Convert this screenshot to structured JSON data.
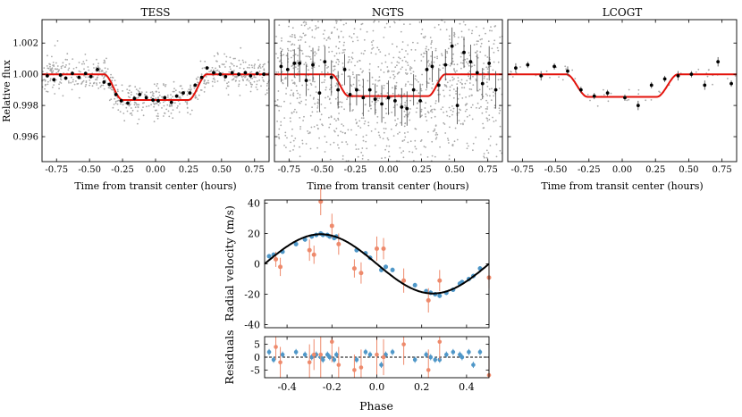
{
  "chart_data": [
    {
      "id": "tess",
      "type": "scatter",
      "title": "TESS",
      "xlabel": "Time from transit center (hours)",
      "ylabel": "Relative flux",
      "xlim": [
        -0.86,
        0.86
      ],
      "ylim": [
        0.9944,
        1.0035
      ],
      "xticks": [
        "-0.75",
        "-0.50",
        "-0.25",
        "0.00",
        "0.25",
        "0.50",
        "0.75"
      ],
      "yticks": [
        "0.996",
        "0.998",
        "1.000",
        "1.002"
      ],
      "model": {
        "depth": 0.00165,
        "ingress_start": 0.39,
        "flat_start": 0.25
      },
      "binned": {
        "x": [
          -0.82,
          -0.77,
          -0.72,
          -0.68,
          -0.63,
          -0.58,
          -0.53,
          -0.49,
          -0.44,
          -0.39,
          -0.35,
          -0.3,
          -0.26,
          -0.21,
          -0.16,
          -0.12,
          -0.07,
          -0.02,
          0.02,
          0.07,
          0.12,
          0.16,
          0.21,
          0.26,
          0.3,
          0.35,
          0.39,
          0.44,
          0.49,
          0.53,
          0.58,
          0.63,
          0.68,
          0.72,
          0.77,
          0.82
        ],
        "y": [
          0.9999,
          0.99965,
          0.99995,
          0.99975,
          1.00005,
          0.9998,
          1.00005,
          0.99985,
          1.0003,
          0.9995,
          0.99935,
          0.9987,
          0.9983,
          0.99815,
          0.99845,
          0.9987,
          0.9985,
          0.99835,
          0.9983,
          0.9985,
          0.9982,
          0.9986,
          0.9988,
          0.9988,
          0.9993,
          0.9998,
          1.0004,
          1.0001,
          1.0,
          0.99985,
          1.0001,
          1.0,
          1.0001,
          0.9999,
          1.00005,
          1.0
        ]
      },
      "scatter_sigma": 0.0006,
      "scatter_count": 650
    },
    {
      "id": "ngts",
      "type": "scatter",
      "title": "NGTS",
      "xlabel": "Time from transit center (hours)",
      "ylabel": "",
      "xlim": [
        -0.86,
        0.86
      ],
      "ylim": [
        0.9944,
        1.0035
      ],
      "xticks": [
        "-0.75",
        "-0.50",
        "-0.25",
        "0.00",
        "0.25",
        "0.50",
        "0.75"
      ],
      "yticks": [],
      "model": {
        "depth": 0.0014,
        "ingress_start": 0.43,
        "flat_start": 0.3
      },
      "binned": {
        "x": [
          -0.81,
          -0.76,
          -0.71,
          -0.67,
          -0.62,
          -0.57,
          -0.52,
          -0.48,
          -0.43,
          -0.38,
          -0.33,
          -0.29,
          -0.24,
          -0.19,
          -0.14,
          -0.1,
          -0.05,
          0.0,
          0.05,
          0.1,
          0.14,
          0.19,
          0.24,
          0.29,
          0.33,
          0.38,
          0.43,
          0.48,
          0.52,
          0.57,
          0.62,
          0.67,
          0.71,
          0.76,
          0.81
        ],
        "y": [
          1.0005,
          1.0003,
          1.0007,
          1.0007,
          0.9996,
          1.0006,
          0.9988,
          1.0008,
          0.9998,
          0.999,
          1.0003,
          0.9987,
          0.999,
          0.9985,
          0.999,
          0.9984,
          0.9981,
          0.9985,
          0.9983,
          0.9979,
          0.9978,
          0.999,
          0.9983,
          1.0003,
          1.0005,
          0.9993,
          1.0006,
          1.0018,
          0.998,
          1.0014,
          1.0008,
          1.0001,
          0.9994,
          1.0007,
          0.999
        ],
        "err": [
          0.001,
          0.0011,
          0.0009,
          0.0012,
          0.001,
          0.0011,
          0.0012,
          0.001,
          0.0011,
          0.0012,
          0.001,
          0.0011,
          0.001,
          0.0012,
          0.0011,
          0.001,
          0.0012,
          0.0011,
          0.001,
          0.0012,
          0.0011,
          0.001,
          0.0011,
          0.0012,
          0.001,
          0.0011,
          0.001,
          0.0012,
          0.0012,
          0.001,
          0.0011,
          0.0012,
          0.001,
          0.0011,
          0.0012
        ]
      },
      "scatter_sigma": 0.0035,
      "scatter_count": 1400
    },
    {
      "id": "lcogt",
      "type": "scatter",
      "title": "LCOGT",
      "xlabel": "Time from transit center (hours)",
      "ylabel": "",
      "xlim": [
        -0.86,
        0.86
      ],
      "ylim": [
        0.9944,
        1.0035
      ],
      "xticks": [
        "-0.75",
        "-0.50",
        "-0.25",
        "0.00",
        "0.25",
        "0.50",
        "0.75"
      ],
      "yticks": [],
      "model": {
        "depth": 0.00145,
        "ingress_start": 0.42,
        "flat_start": 0.26
      },
      "binned": {
        "x": [
          -0.8,
          -0.71,
          -0.61,
          -0.51,
          -0.41,
          -0.31,
          -0.21,
          -0.11,
          0.02,
          0.12,
          0.22,
          0.32,
          0.42,
          0.52,
          0.62,
          0.72,
          0.82
        ],
        "y": [
          1.0004,
          1.0006,
          0.9999,
          1.0005,
          1.0002,
          0.999,
          0.9986,
          0.9988,
          0.9985,
          0.998,
          0.9993,
          0.9997,
          0.9999,
          1.0,
          0.9993,
          1.0008,
          0.9994
        ],
        "err": [
          0.0003,
          0.0002,
          0.0003,
          0.0002,
          0.0003,
          0.0002,
          0.0002,
          0.0002,
          0.0002,
          0.0003,
          0.0002,
          0.0002,
          0.0003,
          0.0002,
          0.0003,
          0.0003,
          0.0002
        ]
      },
      "scatter_sigma": 0.0003,
      "scatter_count": 50
    },
    {
      "id": "rv",
      "type": "scatter",
      "title": "",
      "xlabel": "Phase",
      "ylabel": "Radial velocity (m/s)",
      "xlim": [
        -0.5,
        0.5
      ],
      "ylim": [
        -42,
        42
      ],
      "xticks": [],
      "yticks": [
        "-40",
        "-20",
        "0",
        "20",
        "40"
      ],
      "model": {
        "amplitude": 19.5,
        "curve": "-K sin(2 pi phase)"
      },
      "series": [
        {
          "name": "blue",
          "color": "#4f97c8",
          "phase": [
            -0.48,
            -0.46,
            -0.42,
            -0.36,
            -0.32,
            -0.29,
            -0.27,
            -0.25,
            -0.24,
            -0.22,
            -0.21,
            -0.19,
            -0.18,
            -0.09,
            -0.05,
            -0.03,
            0.02,
            0.04,
            0.07,
            0.17,
            0.22,
            0.24,
            0.26,
            0.28,
            0.31,
            0.34,
            0.37,
            0.38,
            0.41,
            0.43,
            0.46
          ],
          "rv": [
            5,
            6,
            8,
            13,
            16,
            18,
            19,
            20,
            19,
            19,
            18,
            17,
            18,
            9,
            7,
            4,
            -4,
            -2,
            -4,
            -14,
            -18,
            -19,
            -20,
            -21,
            -19,
            -17,
            -13,
            -12,
            -10,
            -8,
            -3
          ],
          "err": [
            1.5,
            1.5,
            1.5,
            1.5,
            1.5,
            1.5,
            1.5,
            1.5,
            1.5,
            1.5,
            1.5,
            1.5,
            1.5,
            1.5,
            1.5,
            1.5,
            1.5,
            1.5,
            1.5,
            1.5,
            1.5,
            1.5,
            1.5,
            1.5,
            1.5,
            1.5,
            1.5,
            1.5,
            1.5,
            1.5,
            1.5
          ]
        },
        {
          "name": "orange",
          "color": "#ee8a6c",
          "phase": [
            -0.45,
            -0.43,
            -0.3,
            -0.28,
            -0.25,
            -0.2,
            -0.17,
            -0.1,
            -0.07,
            0,
            0.03,
            0.12,
            0.23,
            0.28,
            0.5
          ],
          "rv": [
            3,
            -2,
            9,
            6,
            41,
            25,
            13,
            -3,
            -6,
            10,
            10,
            -11,
            -24,
            -11,
            -9
          ],
          "err": [
            5,
            6,
            7,
            6,
            9,
            8,
            7,
            6,
            7,
            8,
            7,
            8,
            8,
            7,
            7
          ]
        }
      ]
    },
    {
      "id": "residuals",
      "type": "scatter",
      "title": "",
      "xlabel": "Phase",
      "ylabel": "Residuals",
      "xlim": [
        -0.5,
        0.5
      ],
      "ylim": [
        -8,
        8
      ],
      "xticks": [
        "-0.4",
        "-0.2",
        "0.0",
        "0.2",
        "0.4"
      ],
      "yticks": [
        "-5",
        "0",
        "5"
      ],
      "series": [
        {
          "name": "blue",
          "color": "#4f97c8",
          "phase": [
            -0.48,
            -0.46,
            -0.42,
            -0.36,
            -0.32,
            -0.29,
            -0.27,
            -0.25,
            -0.24,
            -0.22,
            -0.21,
            -0.19,
            -0.18,
            -0.09,
            -0.05,
            -0.03,
            0.02,
            0.04,
            0.07,
            0.17,
            0.22,
            0.24,
            0.26,
            0.28,
            0.31,
            0.34,
            0.37,
            0.38,
            0.41,
            0.43,
            0.46
          ],
          "res": [
            2,
            -1,
            1,
            2,
            1,
            0,
            1,
            0,
            -1,
            1,
            0,
            -1,
            1,
            -1,
            2,
            1,
            -3,
            1,
            2,
            -1,
            1,
            0,
            -1,
            -1,
            1,
            2,
            1,
            0,
            2,
            -3,
            2
          ],
          "err": [
            1.2,
            1.2,
            1.2,
            1.2,
            1.2,
            1.2,
            1.2,
            1.2,
            1.2,
            1.2,
            1.2,
            1.2,
            1.2,
            1.2,
            1.2,
            1.2,
            1.2,
            1.2,
            1.2,
            1.2,
            1.2,
            1.2,
            1.2,
            1.2,
            1.2,
            1.2,
            1.2,
            1.2,
            1.2,
            1.2,
            1.2
          ]
        },
        {
          "name": "orange",
          "color": "#ee8a6c",
          "phase": [
            -0.45,
            -0.43,
            -0.3,
            -0.28,
            -0.25,
            -0.2,
            -0.17,
            -0.1,
            -0.07,
            0,
            0.03,
            0.12,
            0.23,
            0.28,
            0.5
          ],
          "res": [
            4,
            -2,
            -2,
            1,
            1,
            6,
            -3,
            -5,
            -4,
            1,
            0,
            5,
            -5,
            6,
            -7
          ],
          "err": [
            5,
            6,
            7,
            6,
            9,
            8,
            7,
            6,
            7,
            8,
            7,
            8,
            8,
            7,
            7
          ]
        }
      ]
    }
  ]
}
